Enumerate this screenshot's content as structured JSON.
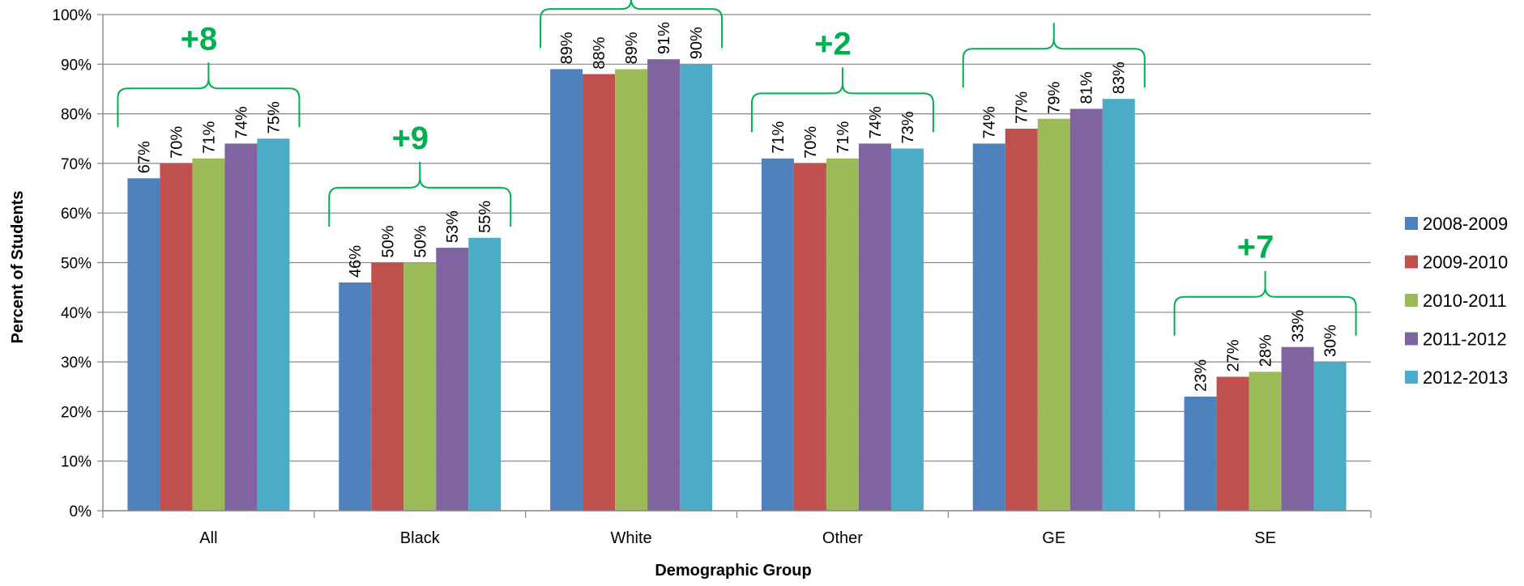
{
  "chart_data": {
    "type": "bar",
    "title": "",
    "xlabel": "Demographic Group",
    "ylabel": "Percent of Students",
    "ylim": [
      0,
      100
    ],
    "ytick_step": 10,
    "ytick_suffix": "%",
    "grid": true,
    "legend_position": "right",
    "categories": [
      "All",
      "Black",
      "White",
      "Other",
      "GE",
      "SE"
    ],
    "series": [
      {
        "name": "2008-2009",
        "color": "#4f81bd",
        "values": [
          67,
          46,
          89,
          71,
          74,
          23
        ]
      },
      {
        "name": "2009-2010",
        "color": "#c0504d",
        "values": [
          70,
          50,
          88,
          70,
          77,
          27
        ]
      },
      {
        "name": "2010-2011",
        "color": "#9bbb59",
        "values": [
          71,
          50,
          89,
          71,
          79,
          28
        ]
      },
      {
        "name": "2011-2012",
        "color": "#8064a2",
        "values": [
          74,
          53,
          91,
          74,
          81,
          33
        ]
      },
      {
        "name": "2012-2013",
        "color": "#4bacc6",
        "values": [
          75,
          55,
          90,
          73,
          83,
          30
        ]
      }
    ],
    "annotations": [
      {
        "category": "All",
        "text": "+8"
      },
      {
        "category": "Black",
        "text": "+9"
      },
      {
        "category": "White",
        "text": ""
      },
      {
        "category": "Other",
        "text": "+2"
      },
      {
        "category": "GE",
        "text": ""
      },
      {
        "category": "SE",
        "text": "+7"
      }
    ],
    "annotation_color": "#00b050"
  }
}
